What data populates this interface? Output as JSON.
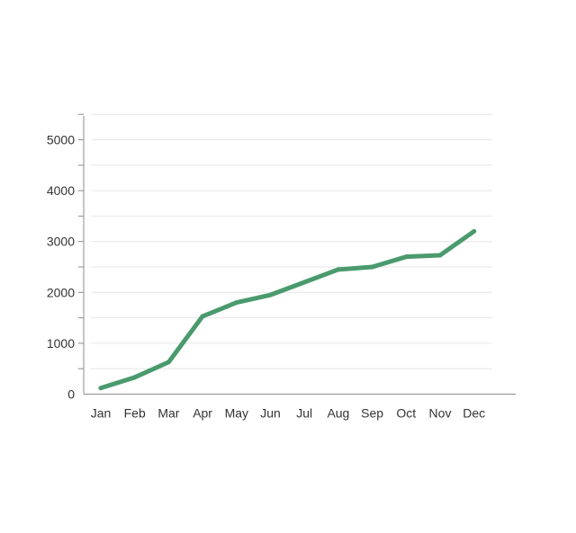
{
  "chart_data": {
    "type": "line",
    "title": "",
    "xlabel": "",
    "ylabel": "",
    "categories": [
      "Jan",
      "Feb",
      "Mar",
      "Apr",
      "May",
      "Jun",
      "Jul",
      "Aug",
      "Sep",
      "Oct",
      "Nov",
      "Dec"
    ],
    "series": [
      {
        "values": [
          120,
          330,
          630,
          1530,
          1800,
          1950,
          2200,
          2450,
          2500,
          2700,
          2730,
          3200
        ]
      }
    ],
    "ylim": [
      0,
      5500
    ],
    "yticks": [
      0,
      1000,
      2000,
      3000,
      4000,
      5000
    ],
    "minor_step": 500,
    "grid": true,
    "line_color": "#4a9a6e"
  }
}
